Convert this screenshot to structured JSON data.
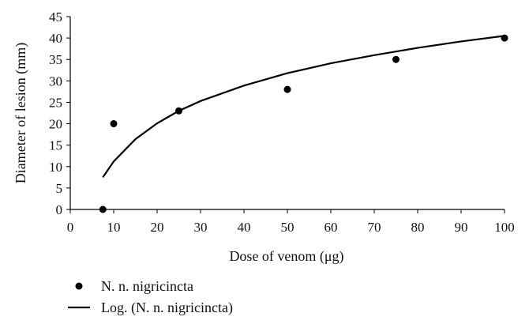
{
  "chart_data": {
    "type": "scatter",
    "xlabel": "Dose of venom (μg)",
    "ylabel": "Diameter of lesion (mm)",
    "xlim": [
      0,
      100
    ],
    "ylim": [
      0,
      45
    ],
    "x_ticks": [
      0,
      10,
      20,
      30,
      40,
      50,
      60,
      70,
      80,
      90,
      100
    ],
    "y_ticks": [
      0,
      5,
      10,
      15,
      20,
      25,
      30,
      35,
      40,
      45
    ],
    "grid": false,
    "legend_position": "bottom-left",
    "series": [
      {
        "name": "N. n. nigricincta",
        "kind": "points",
        "marker": "circle",
        "color": "#000000",
        "x": [
          7.5,
          10,
          25,
          50,
          75,
          100
        ],
        "y": [
          0,
          20,
          23,
          28,
          35,
          40
        ]
      },
      {
        "name": "Log. (N. n. nigricincta)",
        "kind": "trendline",
        "fit": "logarithmic",
        "color": "#000000",
        "x": [
          7.5,
          10,
          15,
          20,
          25,
          30,
          40,
          50,
          60,
          70,
          80,
          90,
          100
        ],
        "y": [
          7.5,
          11.2,
          16.4,
          20.1,
          23.0,
          25.3,
          28.9,
          31.8,
          34.1,
          36.0,
          37.7,
          39.2,
          40.5
        ]
      }
    ]
  }
}
